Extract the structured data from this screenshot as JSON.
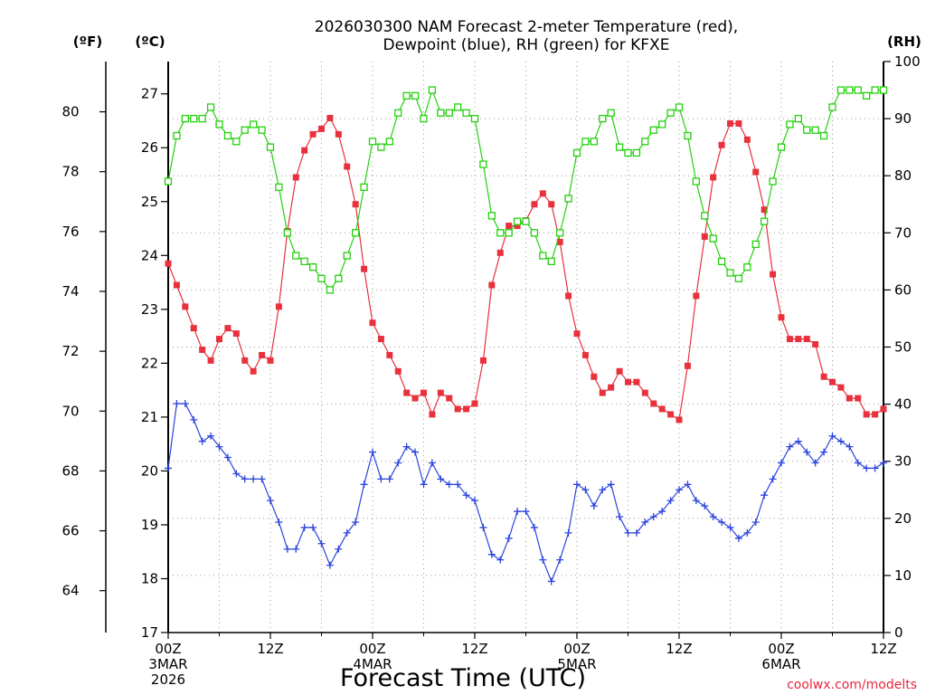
{
  "chart_data": {
    "type": "line",
    "title_lines": [
      "2026030300 NAM Forecast 2-meter Temperature (red),",
      "Dewpoint (blue), RH (green) for KFXE"
    ],
    "xlabel": "Forecast Time (UTC)",
    "credit": "coolwx.com/modelts",
    "units": {
      "fahrenheit": "(ºF)",
      "celsius": "(ºC)",
      "rh": "(RH)"
    },
    "celsius_axis": {
      "range": [
        17,
        27.6
      ],
      "ticks": [
        17,
        18,
        19,
        20,
        21,
        22,
        23,
        24,
        25,
        26,
        27
      ]
    },
    "fahrenheit_axis": {
      "ticks": [
        64,
        66,
        68,
        70,
        72,
        74,
        76,
        78,
        80
      ]
    },
    "rh_axis": {
      "range": [
        0,
        100
      ],
      "ticks": [
        0,
        10,
        20,
        30,
        40,
        50,
        60,
        70,
        80,
        90,
        100
      ]
    },
    "x_axis": {
      "unit": "forecast hour",
      "range": [
        0,
        84
      ],
      "ticks": [
        {
          "hour": 0,
          "lines": [
            "00Z",
            "3MAR",
            "2026"
          ]
        },
        {
          "hour": 12,
          "lines": [
            "12Z"
          ]
        },
        {
          "hour": 24,
          "lines": [
            "00Z",
            "4MAR"
          ]
        },
        {
          "hour": 36,
          "lines": [
            "12Z"
          ]
        },
        {
          "hour": 48,
          "lines": [
            "00Z",
            "5MAR"
          ]
        },
        {
          "hour": 60,
          "lines": [
            "12Z"
          ]
        },
        {
          "hour": 72,
          "lines": [
            "00Z",
            "6MAR"
          ]
        },
        {
          "hour": 84,
          "lines": [
            "12Z"
          ]
        }
      ]
    },
    "grid": true,
    "series": [
      {
        "name": "Temperature",
        "axis": "celsius",
        "color": "#e8313c",
        "marker": "filled-square",
        "x": [
          0,
          1,
          2,
          3,
          4,
          5,
          6,
          7,
          8,
          9,
          10,
          11,
          12,
          13,
          14,
          15,
          16,
          17,
          18,
          19,
          20,
          21,
          22,
          23,
          24,
          25,
          26,
          27,
          28,
          29,
          30,
          31,
          32,
          33,
          34,
          35,
          36,
          37,
          38,
          39,
          40,
          41,
          42,
          43,
          44,
          45,
          46,
          47,
          48,
          49,
          50,
          51,
          52,
          53,
          54,
          55,
          56,
          57,
          58,
          59,
          60,
          61,
          62,
          63,
          64,
          65,
          66,
          67,
          68,
          69,
          70,
          71,
          72,
          73,
          74,
          75,
          76,
          77,
          78,
          79,
          80,
          81,
          82,
          83,
          84
        ],
        "values": [
          23.85,
          23.45,
          23.05,
          22.65,
          22.25,
          22.05,
          22.45,
          22.65,
          22.55,
          22.05,
          21.85,
          22.15,
          22.05,
          23.05,
          24.45,
          25.45,
          25.95,
          26.25,
          26.35,
          26.55,
          26.25,
          25.65,
          24.95,
          23.75,
          22.75,
          22.45,
          22.15,
          21.85,
          21.45,
          21.35,
          21.45,
          21.05,
          21.45,
          21.35,
          21.15,
          21.15,
          21.25,
          22.05,
          23.45,
          24.05,
          24.55,
          24.55,
          24.65,
          24.95,
          25.15,
          24.95,
          24.25,
          23.25,
          22.55,
          22.15,
          21.75,
          21.45,
          21.55,
          21.85,
          21.65,
          21.65,
          21.45,
          21.25,
          21.15,
          21.05,
          20.95,
          21.95,
          23.25,
          24.35,
          25.45,
          26.05,
          26.45,
          26.45,
          26.15,
          25.55,
          24.85,
          23.65,
          22.85,
          22.45,
          22.45,
          22.45,
          22.35,
          21.75,
          21.65,
          21.55,
          21.35,
          21.35,
          21.05,
          21.05,
          21.15
        ]
      },
      {
        "name": "Dewpoint",
        "axis": "celsius",
        "color": "#2b45dc",
        "marker": "plus",
        "x": [
          0,
          1,
          2,
          3,
          4,
          5,
          6,
          7,
          8,
          9,
          10,
          11,
          12,
          13,
          14,
          15,
          16,
          17,
          18,
          19,
          20,
          21,
          22,
          23,
          24,
          25,
          26,
          27,
          28,
          29,
          30,
          31,
          32,
          33,
          34,
          35,
          36,
          37,
          38,
          39,
          40,
          41,
          42,
          43,
          44,
          45,
          46,
          47,
          48,
          49,
          50,
          51,
          52,
          53,
          54,
          55,
          56,
          57,
          58,
          59,
          60,
          61,
          62,
          63,
          64,
          65,
          66,
          67,
          68,
          69,
          70,
          71,
          72,
          73,
          74,
          75,
          76,
          77,
          78,
          79,
          80,
          81,
          82,
          83,
          84
        ],
        "values": [
          20.05,
          21.25,
          21.25,
          20.95,
          20.55,
          20.65,
          20.45,
          20.25,
          19.95,
          19.85,
          19.85,
          19.85,
          19.45,
          19.05,
          18.55,
          18.55,
          18.95,
          18.95,
          18.65,
          18.25,
          18.55,
          18.85,
          19.05,
          19.75,
          20.35,
          19.85,
          19.85,
          20.15,
          20.45,
          20.35,
          19.75,
          20.15,
          19.85,
          19.75,
          19.75,
          19.55,
          19.45,
          18.95,
          18.45,
          18.35,
          18.75,
          19.25,
          19.25,
          18.95,
          18.35,
          17.95,
          18.35,
          18.85,
          19.75,
          19.65,
          19.35,
          19.65,
          19.75,
          19.15,
          18.85,
          18.85,
          19.05,
          19.15,
          19.25,
          19.45,
          19.65,
          19.75,
          19.45,
          19.35,
          19.15,
          19.05,
          18.95,
          18.75,
          18.85,
          19.05,
          19.55,
          19.85,
          20.15,
          20.45,
          20.55,
          20.35,
          20.15,
          20.35,
          20.65,
          20.55,
          20.45,
          20.15,
          20.05,
          20.05,
          20.15
        ]
      },
      {
        "name": "RH",
        "axis": "rh",
        "color": "#22d10c",
        "marker": "hollow-square",
        "x": [
          0,
          1,
          2,
          3,
          4,
          5,
          6,
          7,
          8,
          9,
          10,
          11,
          12,
          13,
          14,
          15,
          16,
          17,
          18,
          19,
          20,
          21,
          22,
          23,
          24,
          25,
          26,
          27,
          28,
          29,
          30,
          31,
          32,
          33,
          34,
          35,
          36,
          37,
          38,
          39,
          40,
          41,
          42,
          43,
          44,
          45,
          46,
          47,
          48,
          49,
          50,
          51,
          52,
          53,
          54,
          55,
          56,
          57,
          58,
          59,
          60,
          61,
          62,
          63,
          64,
          65,
          66,
          67,
          68,
          69,
          70,
          71,
          72,
          73,
          74,
          75,
          76,
          77,
          78,
          79,
          80,
          81,
          82,
          83,
          84
        ],
        "values": [
          79,
          87,
          90,
          90,
          90,
          92,
          89,
          87,
          86,
          88,
          89,
          88,
          85,
          78,
          70,
          66,
          65,
          64,
          62,
          60,
          62,
          66,
          70,
          78,
          86,
          85,
          86,
          91,
          94,
          94,
          90,
          95,
          91,
          91,
          92,
          91,
          90,
          82,
          73,
          70,
          70,
          72,
          72,
          70,
          66,
          65,
          70,
          76,
          84,
          86,
          86,
          90,
          91,
          85,
          84,
          84,
          86,
          88,
          89,
          91,
          92,
          87,
          79,
          73,
          69,
          65,
          63,
          62,
          64,
          68,
          72,
          79,
          85,
          89,
          90,
          88,
          88,
          87,
          92,
          95,
          95,
          95,
          94,
          95,
          95
        ]
      }
    ]
  }
}
